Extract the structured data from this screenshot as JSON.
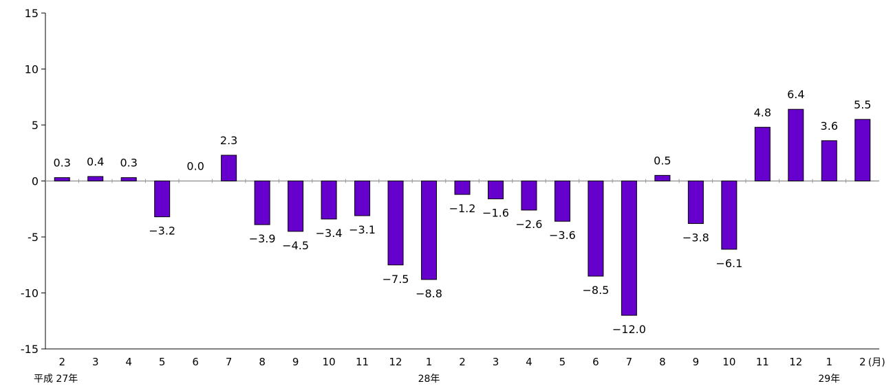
{
  "chart_data": {
    "type": "bar",
    "title": "",
    "xlabel": "",
    "ylabel": "",
    "ylim": [
      -15,
      15
    ],
    "yticks": [
      15,
      10,
      5,
      0,
      -5,
      -10,
      -15
    ],
    "ytick_labels": [
      "15",
      "10",
      "5",
      "0",
      "-5",
      "-10",
      "-15"
    ],
    "categories": [
      "2",
      "3",
      "4",
      "5",
      "6",
      "7",
      "8",
      "9",
      "10",
      "11",
      "12",
      "1",
      "2",
      "3",
      "4",
      "5",
      "6",
      "7",
      "8",
      "9",
      "10",
      "11",
      "12",
      "1",
      "2"
    ],
    "values": [
      0.3,
      0.4,
      0.3,
      -3.2,
      0.0,
      2.3,
      -3.9,
      -4.5,
      -3.4,
      -3.1,
      -7.5,
      -8.8,
      -1.2,
      -1.6,
      -2.6,
      -3.6,
      -8.5,
      -12.0,
      0.5,
      -3.8,
      -6.1,
      4.8,
      6.4,
      3.6,
      5.5
    ],
    "value_labels": [
      "0.3",
      "0.4",
      "0.3",
      "−3.2",
      "0.0",
      "2.3",
      "−3.9",
      "−4.5",
      "−3.4",
      "−3.1",
      "−7.5",
      "−8.8",
      "−1.2",
      "−1.6",
      "−2.6",
      "−3.6",
      "−8.5",
      "−12.0",
      "0.5",
      "−3.8",
      "−6.1",
      "4.8",
      "6.4",
      "3.6",
      "5.5"
    ],
    "x_unit_label": "(月)",
    "year_labels": [
      {
        "text": "平成 27年",
        "index": 0
      },
      {
        "text": "28年",
        "index": 11
      },
      {
        "text": "29年",
        "index": 23
      }
    ],
    "grid": false,
    "bar_color": "#6600cc",
    "bar_edge_color": "#000000"
  }
}
